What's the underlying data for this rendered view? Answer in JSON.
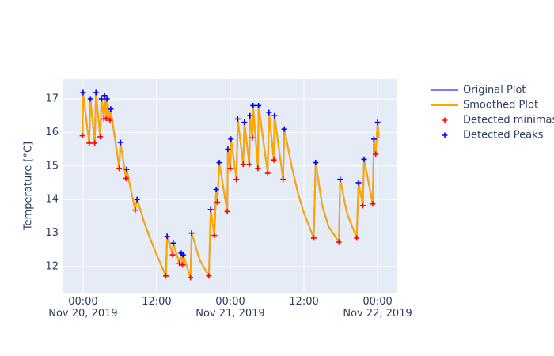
{
  "chart_data": {
    "type": "line",
    "y_label": "Temperature [°C]",
    "xlim": [
      "2019-11-19 20:47",
      "2019-11-22 03:13"
    ],
    "xticks": [
      {
        "value": "2019-11-20 00:00",
        "label": "00:00\nNov 20, 2019"
      },
      {
        "value": "2019-11-20 12:00",
        "label": "12:00"
      },
      {
        "value": "2019-11-21 00:00",
        "label": "00:00\nNov 21, 2019"
      },
      {
        "value": "2019-11-21 12:00",
        "label": "12:00"
      },
      {
        "value": "2019-11-22 00:00",
        "label": "00:00\nNov 22, 2019"
      }
    ],
    "ylim": [
      11.22,
      17.59
    ],
    "yticks": [
      12,
      13,
      14,
      15,
      16,
      17
    ],
    "grid": true,
    "legend": "right",
    "series": [
      {
        "name": "Original Plot",
        "color": "#7b7bf0",
        "mode": "line",
        "x": [
          "2019-11-19 23:54",
          "2019-11-20 00:00",
          "2019-11-20 01:00",
          "2019-11-20 01:12",
          "2019-11-20 01:54",
          "2019-11-20 02:06",
          "2019-11-20 02:48",
          "2019-11-20 03:00",
          "2019-11-20 03:24",
          "2019-11-20 03:30",
          "2019-11-20 03:48",
          "2019-11-20 03:54",
          "2019-11-20 04:24",
          "2019-11-20 04:30",
          "2019-11-20 05:54",
          "2019-11-20 06:06",
          "2019-11-20 07:00",
          "2019-11-20 07:06",
          "2019-11-20 08:30",
          "2019-11-20 08:48",
          "2019-11-20 10:00",
          "2019-11-20 11:00",
          "2019-11-20 12:00",
          "2019-11-20 13:30",
          "2019-11-20 13:42",
          "2019-11-20 14:36",
          "2019-11-20 14:42",
          "2019-11-20 15:42",
          "2019-11-20 16:00",
          "2019-11-20 16:12",
          "2019-11-20 16:18",
          "2019-11-20 17:30",
          "2019-11-20 17:42",
          "2019-11-20 19:00",
          "2019-11-20 20:30",
          "2019-11-20 20:48",
          "2019-11-20 21:24",
          "2019-11-20 21:42",
          "2019-11-20 21:54",
          "2019-11-20 22:12",
          "2019-11-20 23:30",
          "2019-11-20 23:36",
          "2019-11-21 00:00",
          "2019-11-21 00:06",
          "2019-11-21 01:00",
          "2019-11-21 01:12",
          "2019-11-21 02:06",
          "2019-11-21 02:18",
          "2019-11-21 03:06",
          "2019-11-21 03:12",
          "2019-11-21 03:36",
          "2019-11-21 03:42",
          "2019-11-21 04:30",
          "2019-11-21 04:36",
          "2019-11-21 06:06",
          "2019-11-21 06:18",
          "2019-11-21 07:06",
          "2019-11-21 07:12",
          "2019-11-21 08:36",
          "2019-11-21 08:48",
          "2019-11-21 10:00",
          "2019-11-21 11:00",
          "2019-11-21 12:00",
          "2019-11-21 13:36",
          "2019-11-21 13:54",
          "2019-11-21 15:00",
          "2019-11-21 16:00",
          "2019-11-21 17:42",
          "2019-11-21 17:54",
          "2019-11-21 19:00",
          "2019-11-21 20:36",
          "2019-11-21 20:54",
          "2019-11-21 21:36",
          "2019-11-21 21:48",
          "2019-11-21 23:12",
          "2019-11-21 23:24",
          "2019-11-21 23:42",
          "2019-11-22 00:00",
          "2019-11-22 00:12"
        ],
        "values": [
          15.9,
          17.19,
          15.68,
          17.0,
          15.68,
          17.19,
          15.87,
          17.0,
          16.4,
          17.1,
          16.42,
          17.0,
          16.36,
          16.7,
          14.93,
          15.7,
          14.63,
          14.9,
          13.68,
          14.0,
          13.3,
          12.8,
          12.35,
          11.72,
          12.9,
          12.35,
          12.7,
          12.1,
          12.4,
          12.05,
          12.35,
          11.67,
          13.0,
          12.2,
          11.72,
          13.7,
          12.93,
          14.3,
          13.92,
          15.1,
          13.64,
          15.5,
          14.93,
          15.8,
          14.6,
          16.4,
          15.05,
          16.3,
          15.05,
          16.5,
          15.84,
          16.8,
          14.93,
          16.8,
          14.78,
          16.6,
          15.18,
          16.5,
          14.6,
          16.1,
          15.0,
          14.2,
          13.6,
          12.85,
          15.1,
          13.8,
          13.2,
          12.73,
          14.6,
          13.6,
          12.85,
          14.5,
          13.82,
          15.2,
          13.87,
          15.8,
          15.35,
          16.3,
          15.85
        ]
      },
      {
        "name": "Smoothed Plot",
        "color": "#ffa500",
        "mode": "line",
        "x": [
          "2019-11-19 23:54",
          "2019-11-20 00:00",
          "2019-11-20 01:00",
          "2019-11-20 01:12",
          "2019-11-20 01:54",
          "2019-11-20 02:06",
          "2019-11-20 02:48",
          "2019-11-20 03:00",
          "2019-11-20 03:24",
          "2019-11-20 03:30",
          "2019-11-20 03:48",
          "2019-11-20 03:54",
          "2019-11-20 04:24",
          "2019-11-20 04:30",
          "2019-11-20 05:54",
          "2019-11-20 06:06",
          "2019-11-20 07:00",
          "2019-11-20 07:06",
          "2019-11-20 08:30",
          "2019-11-20 08:48",
          "2019-11-20 10:00",
          "2019-11-20 11:00",
          "2019-11-20 12:00",
          "2019-11-20 13:30",
          "2019-11-20 13:42",
          "2019-11-20 14:36",
          "2019-11-20 14:42",
          "2019-11-20 15:42",
          "2019-11-20 16:00",
          "2019-11-20 16:12",
          "2019-11-20 16:18",
          "2019-11-20 17:30",
          "2019-11-20 17:42",
          "2019-11-20 19:00",
          "2019-11-20 20:30",
          "2019-11-20 20:48",
          "2019-11-20 21:24",
          "2019-11-20 21:42",
          "2019-11-20 21:54",
          "2019-11-20 22:12",
          "2019-11-20 23:30",
          "2019-11-20 23:36",
          "2019-11-21 00:00",
          "2019-11-21 00:06",
          "2019-11-21 01:00",
          "2019-11-21 01:12",
          "2019-11-21 02:06",
          "2019-11-21 02:18",
          "2019-11-21 03:06",
          "2019-11-21 03:12",
          "2019-11-21 03:36",
          "2019-11-21 03:42",
          "2019-11-21 04:30",
          "2019-11-21 04:36",
          "2019-11-21 06:06",
          "2019-11-21 06:18",
          "2019-11-21 07:06",
          "2019-11-21 07:12",
          "2019-11-21 08:36",
          "2019-11-21 08:48",
          "2019-11-21 10:00",
          "2019-11-21 11:00",
          "2019-11-21 12:00",
          "2019-11-21 13:36",
          "2019-11-21 13:54",
          "2019-11-21 15:00",
          "2019-11-21 16:00",
          "2019-11-21 17:42",
          "2019-11-21 17:54",
          "2019-11-21 19:00",
          "2019-11-21 20:36",
          "2019-11-21 20:54",
          "2019-11-21 21:36",
          "2019-11-21 21:48",
          "2019-11-21 23:12",
          "2019-11-21 23:24",
          "2019-11-21 23:42",
          "2019-11-22 00:00",
          "2019-11-22 00:12"
        ],
        "values": [
          15.9,
          17.19,
          15.68,
          17.0,
          15.68,
          17.19,
          15.87,
          17.0,
          16.4,
          17.1,
          16.42,
          17.0,
          16.36,
          16.7,
          14.93,
          15.7,
          14.63,
          14.9,
          13.68,
          14.0,
          13.3,
          12.8,
          12.35,
          11.72,
          12.9,
          12.35,
          12.7,
          12.1,
          12.4,
          12.05,
          12.35,
          11.67,
          13.0,
          12.2,
          11.72,
          13.7,
          12.93,
          14.3,
          13.92,
          15.1,
          13.64,
          15.5,
          14.93,
          15.8,
          14.6,
          16.4,
          15.05,
          16.3,
          15.05,
          16.5,
          15.84,
          16.8,
          14.93,
          16.8,
          14.78,
          16.6,
          15.18,
          16.5,
          14.6,
          16.1,
          15.0,
          14.2,
          13.6,
          12.85,
          15.1,
          13.8,
          13.2,
          12.73,
          14.6,
          13.6,
          12.85,
          14.5,
          13.82,
          15.2,
          13.87,
          15.8,
          15.35,
          16.3,
          15.85
        ]
      },
      {
        "name": "Detected minimas",
        "color": "#ff0000",
        "mode": "markers",
        "x": [
          "2019-11-19 23:54",
          "2019-11-20 01:00",
          "2019-11-20 01:54",
          "2019-11-20 02:48",
          "2019-11-20 03:24",
          "2019-11-20 03:48",
          "2019-11-20 04:24",
          "2019-11-20 05:54",
          "2019-11-20 07:00",
          "2019-11-20 08:30",
          "2019-11-20 13:30",
          "2019-11-20 14:36",
          "2019-11-20 15:42",
          "2019-11-20 16:12",
          "2019-11-20 17:30",
          "2019-11-20 20:30",
          "2019-11-20 21:24",
          "2019-11-20 21:54",
          "2019-11-20 23:30",
          "2019-11-21 00:00",
          "2019-11-21 01:00",
          "2019-11-21 02:06",
          "2019-11-21 03:06",
          "2019-11-21 03:36",
          "2019-11-21 04:30",
          "2019-11-21 06:06",
          "2019-11-21 07:06",
          "2019-11-21 08:36",
          "2019-11-21 13:36",
          "2019-11-21 17:42",
          "2019-11-21 20:36",
          "2019-11-21 21:36",
          "2019-11-21 23:12",
          "2019-11-21 23:42"
        ],
        "values": [
          15.9,
          15.68,
          15.68,
          15.87,
          16.4,
          16.42,
          16.36,
          14.93,
          14.63,
          13.68,
          11.72,
          12.35,
          12.1,
          12.05,
          11.67,
          11.72,
          12.93,
          13.92,
          13.64,
          14.93,
          14.6,
          15.05,
          15.05,
          15.84,
          14.93,
          14.78,
          15.18,
          14.6,
          12.85,
          12.73,
          12.85,
          13.82,
          13.87,
          15.35
        ]
      },
      {
        "name": "Detected Peaks",
        "color": "#0000ff",
        "mode": "markers",
        "x": [
          "2019-11-20 00:00",
          "2019-11-20 01:12",
          "2019-11-20 02:06",
          "2019-11-20 03:00",
          "2019-11-20 03:30",
          "2019-11-20 03:54",
          "2019-11-20 04:30",
          "2019-11-20 06:06",
          "2019-11-20 07:06",
          "2019-11-20 08:48",
          "2019-11-20 13:42",
          "2019-11-20 14:42",
          "2019-11-20 16:00",
          "2019-11-20 16:18",
          "2019-11-20 17:42",
          "2019-11-20 20:48",
          "2019-11-20 21:42",
          "2019-11-20 22:12",
          "2019-11-20 23:36",
          "2019-11-21 00:06",
          "2019-11-21 01:12",
          "2019-11-21 02:18",
          "2019-11-21 03:12",
          "2019-11-21 03:42",
          "2019-11-21 04:36",
          "2019-11-21 06:18",
          "2019-11-21 07:12",
          "2019-11-21 08:48",
          "2019-11-21 13:54",
          "2019-11-21 17:54",
          "2019-11-21 20:54",
          "2019-11-21 21:48",
          "2019-11-21 23:24",
          "2019-11-22 00:00"
        ],
        "values": [
          17.19,
          17.0,
          17.19,
          17.0,
          17.1,
          17.0,
          16.7,
          15.7,
          14.9,
          14.0,
          12.9,
          12.7,
          12.4,
          12.35,
          13.0,
          13.7,
          14.3,
          15.1,
          15.5,
          15.8,
          16.4,
          16.3,
          16.5,
          16.8,
          16.8,
          16.6,
          16.5,
          16.1,
          15.1,
          14.6,
          14.5,
          15.2,
          15.8,
          16.3
        ]
      }
    ]
  }
}
